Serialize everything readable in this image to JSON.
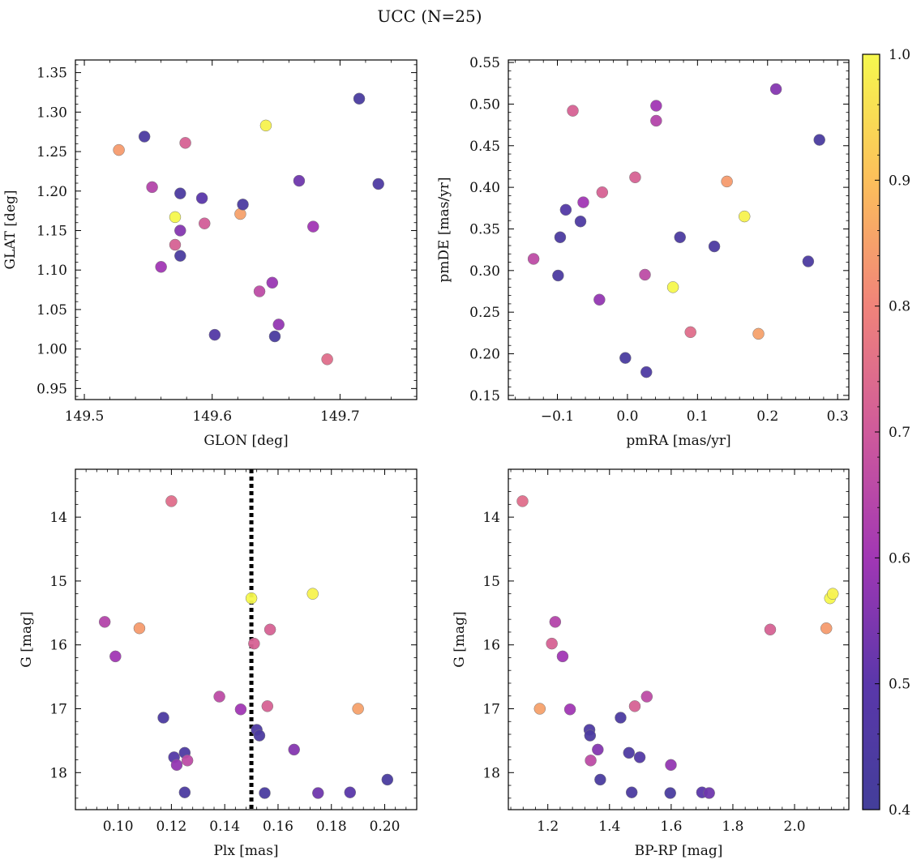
{
  "figure_title": "UCC (N=25)",
  "colorbar": {
    "min": 0.4,
    "max": 1.0,
    "ticks": [
      "0.4",
      "0.5",
      "0.6",
      "0.7",
      "0.8",
      "0.9",
      "1.0"
    ],
    "tick_values": [
      0.4,
      0.5,
      0.6,
      0.7,
      0.8,
      0.9,
      1.0
    ],
    "colormap": "plasma"
  },
  "chart_data": [
    {
      "type": "scatter",
      "id": "glon-glat",
      "xlabel": "GLON [deg]",
      "ylabel": "GLAT [deg]",
      "xlim": [
        149.493,
        149.76
      ],
      "ylim": [
        0.936,
        1.366
      ],
      "xticks": [
        149.5,
        149.6,
        149.7
      ],
      "xtick_labels": [
        "149.5",
        "149.6",
        "149.7"
      ],
      "yticks": [
        0.95,
        1.0,
        1.05,
        1.1,
        1.15,
        1.2,
        1.25,
        1.3,
        1.35
      ],
      "ytick_labels": [
        "0.95",
        "1.00",
        "1.05",
        "1.10",
        "1.15",
        "1.20",
        "1.25",
        "1.30",
        "1.35"
      ],
      "invert_y": false,
      "points": [
        {
          "x": 149.527,
          "y": 1.252,
          "c": 0.84
        },
        {
          "x": 149.547,
          "y": 1.269,
          "c": 0.44
        },
        {
          "x": 149.553,
          "y": 1.205,
          "c": 0.64
        },
        {
          "x": 149.56,
          "y": 1.104,
          "c": 0.6
        },
        {
          "x": 149.571,
          "y": 1.167,
          "c": 1.0
        },
        {
          "x": 149.571,
          "y": 1.132,
          "c": 0.72
        },
        {
          "x": 149.575,
          "y": 1.197,
          "c": 0.44
        },
        {
          "x": 149.575,
          "y": 1.15,
          "c": 0.56
        },
        {
          "x": 149.575,
          "y": 1.118,
          "c": 0.43
        },
        {
          "x": 149.579,
          "y": 1.261,
          "c": 0.72
        },
        {
          "x": 149.592,
          "y": 1.191,
          "c": 0.5
        },
        {
          "x": 149.594,
          "y": 1.159,
          "c": 0.71
        },
        {
          "x": 149.602,
          "y": 1.018,
          "c": 0.47
        },
        {
          "x": 149.622,
          "y": 1.171,
          "c": 0.85
        },
        {
          "x": 149.624,
          "y": 1.183,
          "c": 0.44
        },
        {
          "x": 149.637,
          "y": 1.073,
          "c": 0.66
        },
        {
          "x": 149.642,
          "y": 1.283,
          "c": 0.99
        },
        {
          "x": 149.647,
          "y": 1.084,
          "c": 0.59
        },
        {
          "x": 149.649,
          "y": 1.016,
          "c": 0.43
        },
        {
          "x": 149.652,
          "y": 1.031,
          "c": 0.58
        },
        {
          "x": 149.668,
          "y": 1.213,
          "c": 0.53
        },
        {
          "x": 149.679,
          "y": 1.155,
          "c": 0.6
        },
        {
          "x": 149.69,
          "y": 0.987,
          "c": 0.75
        },
        {
          "x": 149.715,
          "y": 1.317,
          "c": 0.43
        },
        {
          "x": 149.73,
          "y": 1.209,
          "c": 0.45
        }
      ]
    },
    {
      "type": "scatter",
      "id": "pmra-pmde",
      "xlabel": "pmRA [mas/yr]",
      "ylabel": "pmDE [mas/yr]",
      "xlim": [
        -0.17,
        0.316
      ],
      "ylim": [
        0.145,
        0.553
      ],
      "xticks": [
        -0.1,
        0.0,
        0.1,
        0.2,
        0.3
      ],
      "xtick_labels": [
        "−0.1",
        "0.0",
        "0.1",
        "0.2",
        "0.3"
      ],
      "yticks": [
        0.15,
        0.2,
        0.25,
        0.3,
        0.35,
        0.4,
        0.45,
        0.5,
        0.55
      ],
      "ytick_labels": [
        "0.15",
        "0.20",
        "0.25",
        "0.30",
        "0.35",
        "0.40",
        "0.45",
        "0.50",
        "0.55"
      ],
      "invert_y": false,
      "points": [
        {
          "x": -0.134,
          "y": 0.314,
          "c": 0.66
        },
        {
          "x": -0.099,
          "y": 0.294,
          "c": 0.44
        },
        {
          "x": -0.096,
          "y": 0.34,
          "c": 0.44
        },
        {
          "x": -0.088,
          "y": 0.373,
          "c": 0.47
        },
        {
          "x": -0.078,
          "y": 0.492,
          "c": 0.72
        },
        {
          "x": -0.067,
          "y": 0.359,
          "c": 0.45
        },
        {
          "x": -0.063,
          "y": 0.382,
          "c": 0.6
        },
        {
          "x": -0.04,
          "y": 0.265,
          "c": 0.58
        },
        {
          "x": -0.036,
          "y": 0.394,
          "c": 0.72
        },
        {
          "x": -0.003,
          "y": 0.195,
          "c": 0.43
        },
        {
          "x": 0.011,
          "y": 0.412,
          "c": 0.72
        },
        {
          "x": 0.025,
          "y": 0.295,
          "c": 0.66
        },
        {
          "x": 0.027,
          "y": 0.178,
          "c": 0.45
        },
        {
          "x": 0.041,
          "y": 0.498,
          "c": 0.6
        },
        {
          "x": 0.041,
          "y": 0.48,
          "c": 0.64
        },
        {
          "x": 0.065,
          "y": 0.28,
          "c": 1.0
        },
        {
          "x": 0.075,
          "y": 0.34,
          "c": 0.44
        },
        {
          "x": 0.09,
          "y": 0.226,
          "c": 0.75
        },
        {
          "x": 0.124,
          "y": 0.329,
          "c": 0.44
        },
        {
          "x": 0.142,
          "y": 0.407,
          "c": 0.84
        },
        {
          "x": 0.167,
          "y": 0.365,
          "c": 0.99
        },
        {
          "x": 0.187,
          "y": 0.224,
          "c": 0.85
        },
        {
          "x": 0.212,
          "y": 0.518,
          "c": 0.56
        },
        {
          "x": 0.258,
          "y": 0.311,
          "c": 0.44
        },
        {
          "x": 0.274,
          "y": 0.457,
          "c": 0.43
        }
      ]
    },
    {
      "type": "scatter",
      "id": "plx-g",
      "xlabel": "Plx [mas]",
      "ylabel": "G [mag]",
      "xlim": [
        0.084,
        0.212
      ],
      "ylim": [
        13.25,
        18.58
      ],
      "xticks": [
        0.1,
        0.12,
        0.14,
        0.16,
        0.18,
        0.2
      ],
      "xtick_labels": [
        "0.10",
        "0.12",
        "0.14",
        "0.16",
        "0.18",
        "0.20"
      ],
      "yticks": [
        14,
        15,
        16,
        17,
        18
      ],
      "ytick_labels": [
        "14",
        "15",
        "16",
        "17",
        "18"
      ],
      "invert_y": true,
      "vline": {
        "x": 0.15,
        "style": "dotted",
        "color": "#000000"
      },
      "points": [
        {
          "x": 0.095,
          "y": 15.64,
          "c": 0.64
        },
        {
          "x": 0.099,
          "y": 16.18,
          "c": 0.6
        },
        {
          "x": 0.108,
          "y": 15.74,
          "c": 0.84
        },
        {
          "x": 0.117,
          "y": 17.14,
          "c": 0.44
        },
        {
          "x": 0.12,
          "y": 13.75,
          "c": 0.75
        },
        {
          "x": 0.121,
          "y": 17.76,
          "c": 0.47
        },
        {
          "x": 0.122,
          "y": 17.88,
          "c": 0.58
        },
        {
          "x": 0.125,
          "y": 17.69,
          "c": 0.45
        },
        {
          "x": 0.125,
          "y": 18.31,
          "c": 0.44
        },
        {
          "x": 0.126,
          "y": 17.81,
          "c": 0.66
        },
        {
          "x": 0.138,
          "y": 16.81,
          "c": 0.66
        },
        {
          "x": 0.146,
          "y": 17.01,
          "c": 0.6
        },
        {
          "x": 0.15,
          "y": 15.27,
          "c": 1.0
        },
        {
          "x": 0.151,
          "y": 15.98,
          "c": 0.72
        },
        {
          "x": 0.152,
          "y": 17.33,
          "c": 0.45
        },
        {
          "x": 0.153,
          "y": 17.42,
          "c": 0.44
        },
        {
          "x": 0.155,
          "y": 18.32,
          "c": 0.43
        },
        {
          "x": 0.156,
          "y": 16.96,
          "c": 0.72
        },
        {
          "x": 0.157,
          "y": 15.76,
          "c": 0.72
        },
        {
          "x": 0.166,
          "y": 17.64,
          "c": 0.56
        },
        {
          "x": 0.173,
          "y": 15.2,
          "c": 0.99
        },
        {
          "x": 0.175,
          "y": 18.32,
          "c": 0.53
        },
        {
          "x": 0.187,
          "y": 18.31,
          "c": 0.5
        },
        {
          "x": 0.19,
          "y": 17.0,
          "c": 0.85
        },
        {
          "x": 0.201,
          "y": 18.11,
          "c": 0.43
        }
      ]
    },
    {
      "type": "scatter",
      "id": "bprp-g",
      "xlabel": "BP-RP [mag]",
      "ylabel": "G [mag]",
      "xlim": [
        1.072,
        2.176
      ],
      "ylim": [
        13.25,
        18.58
      ],
      "xticks": [
        1.2,
        1.4,
        1.6,
        1.8,
        2.0
      ],
      "xtick_labels": [
        "1.2",
        "1.4",
        "1.6",
        "1.8",
        "2.0"
      ],
      "yticks": [
        14,
        15,
        16,
        17,
        18
      ],
      "ytick_labels": [
        "14",
        "15",
        "16",
        "17",
        "18"
      ],
      "invert_y": true,
      "points": [
        {
          "x": 1.118,
          "y": 13.75,
          "c": 0.75
        },
        {
          "x": 1.174,
          "y": 17.0,
          "c": 0.85
        },
        {
          "x": 1.213,
          "y": 15.98,
          "c": 0.72
        },
        {
          "x": 1.224,
          "y": 15.64,
          "c": 0.64
        },
        {
          "x": 1.248,
          "y": 16.18,
          "c": 0.6
        },
        {
          "x": 1.272,
          "y": 17.01,
          "c": 0.6
        },
        {
          "x": 1.335,
          "y": 17.33,
          "c": 0.45
        },
        {
          "x": 1.337,
          "y": 17.42,
          "c": 0.44
        },
        {
          "x": 1.339,
          "y": 17.81,
          "c": 0.66
        },
        {
          "x": 1.362,
          "y": 17.64,
          "c": 0.56
        },
        {
          "x": 1.37,
          "y": 18.11,
          "c": 0.43
        },
        {
          "x": 1.436,
          "y": 17.14,
          "c": 0.44
        },
        {
          "x": 1.463,
          "y": 17.69,
          "c": 0.45
        },
        {
          "x": 1.472,
          "y": 18.31,
          "c": 0.44
        },
        {
          "x": 1.482,
          "y": 16.96,
          "c": 0.72
        },
        {
          "x": 1.498,
          "y": 17.76,
          "c": 0.47
        },
        {
          "x": 1.521,
          "y": 16.81,
          "c": 0.66
        },
        {
          "x": 1.597,
          "y": 18.32,
          "c": 0.43
        },
        {
          "x": 1.599,
          "y": 17.88,
          "c": 0.58
        },
        {
          "x": 1.7,
          "y": 18.31,
          "c": 0.5
        },
        {
          "x": 1.723,
          "y": 18.32,
          "c": 0.53
        },
        {
          "x": 1.921,
          "y": 15.76,
          "c": 0.72
        },
        {
          "x": 2.103,
          "y": 15.74,
          "c": 0.84
        },
        {
          "x": 2.115,
          "y": 15.27,
          "c": 1.0
        },
        {
          "x": 2.124,
          "y": 15.2,
          "c": 0.99
        }
      ]
    }
  ]
}
